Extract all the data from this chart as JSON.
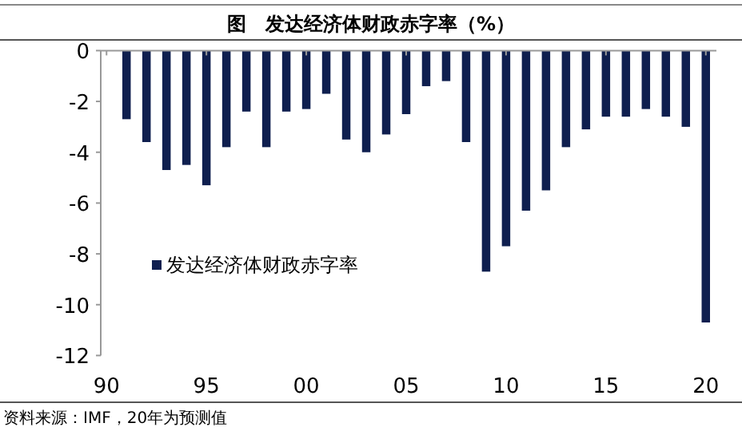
{
  "chart_data": {
    "type": "bar",
    "title": "图　发达经济体财政赤字率（%）",
    "categories": [
      "90",
      null,
      null,
      null,
      null,
      "95",
      null,
      null,
      null,
      null,
      "00",
      null,
      null,
      null,
      null,
      "05",
      null,
      null,
      null,
      null,
      "10",
      null,
      null,
      null,
      null,
      "15",
      null,
      null,
      null,
      null,
      "20"
    ],
    "series": [
      {
        "name": "发达经济体财政赤字率",
        "color": "#0f1f4f",
        "values": [
          null,
          -2.7,
          -3.6,
          -4.7,
          -4.5,
          -5.3,
          -3.8,
          -2.4,
          -3.8,
          -2.4,
          -2.3,
          -1.7,
          -3.5,
          -4.0,
          -3.3,
          -2.5,
          -1.4,
          -1.2,
          -3.6,
          -8.7,
          -7.7,
          -6.3,
          -5.5,
          -3.8,
          -3.1,
          -2.6,
          -2.6,
          -2.3,
          -2.6,
          -3.0,
          -10.7
        ]
      }
    ],
    "ylim": [
      -12,
      0
    ],
    "yticks": [
      -12,
      -10,
      -8,
      -6,
      -4,
      -2,
      0
    ],
    "grid": false,
    "legend": "left",
    "annotations": [
      "资料来源：IMF，20年为预测值"
    ]
  }
}
